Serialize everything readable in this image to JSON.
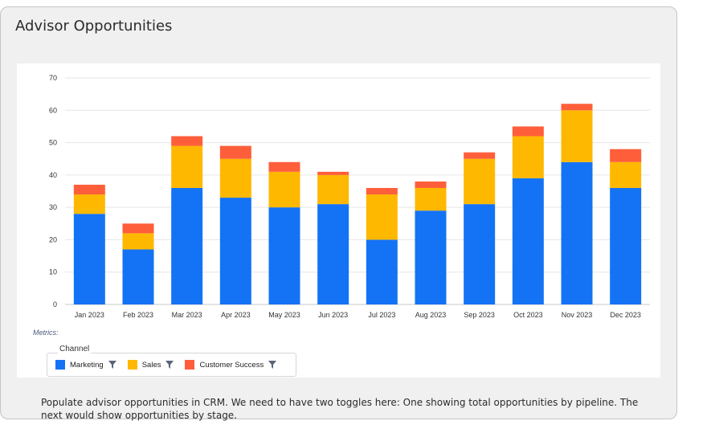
{
  "card": {
    "title": "Advisor Opportunities",
    "note": "Populate advisor opportunities in CRM. We need to have two toggles here: One showing total opportunities by pipeline. The next would show opportunities by stage."
  },
  "legend": {
    "metrics_label": "Metrics:",
    "caption": "Channel",
    "items": [
      {
        "label": "Marketing",
        "color": "#1473f5",
        "icon": "filter-icon"
      },
      {
        "label": "Sales",
        "color": "#ffb800",
        "icon": "filter-icon"
      },
      {
        "label": "Customer Success",
        "color": "#ff5e3a",
        "icon": "filter-icon"
      }
    ]
  },
  "chart_data": {
    "type": "bar",
    "stacked": true,
    "title": "",
    "xlabel": "",
    "ylabel": "",
    "ylim": [
      0,
      70
    ],
    "yticks": [
      0,
      10,
      20,
      30,
      40,
      50,
      60,
      70
    ],
    "grid": true,
    "legend_position": "bottom-left",
    "categories": [
      "Jan 2023",
      "Feb 2023",
      "Mar 2023",
      "Apr 2023",
      "May 2023",
      "Jun 2023",
      "Jul 2023",
      "Aug 2023",
      "Sep 2023",
      "Oct 2023",
      "Nov 2023",
      "Dec 2023"
    ],
    "series": [
      {
        "name": "Marketing",
        "color": "#1473f5",
        "values": [
          28,
          17,
          36,
          33,
          30,
          31,
          20,
          29,
          31,
          39,
          44,
          36
        ]
      },
      {
        "name": "Sales",
        "color": "#ffb800",
        "values": [
          6,
          5,
          13,
          12,
          11,
          9,
          14,
          7,
          14,
          13,
          16,
          8
        ]
      },
      {
        "name": "Customer Success",
        "color": "#ff5e3a",
        "values": [
          3,
          3,
          3,
          4,
          3,
          1,
          2,
          2,
          2,
          3,
          2,
          4
        ]
      }
    ]
  }
}
